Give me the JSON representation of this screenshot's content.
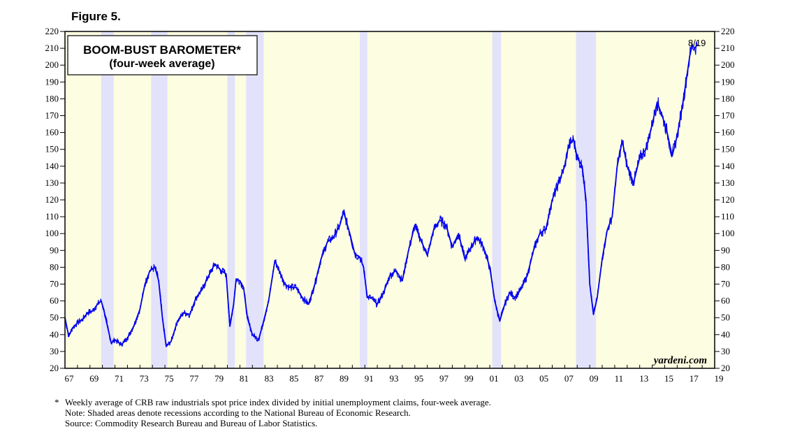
{
  "figure_label": "Figure 5.",
  "chart_data": {
    "type": "line",
    "title": "BOOM-BUST BAROMETER*",
    "subtitle": "(four-week average)",
    "xlabel": "",
    "ylabel": "",
    "xlim": [
      1967.0,
      2019.0
    ],
    "ylim": [
      20,
      220
    ],
    "y_ticks": [
      20,
      30,
      40,
      50,
      60,
      70,
      80,
      90,
      100,
      110,
      120,
      130,
      140,
      150,
      160,
      170,
      180,
      190,
      200,
      210,
      220
    ],
    "x_tick_labels": [
      "67",
      "69",
      "71",
      "73",
      "75",
      "77",
      "79",
      "81",
      "83",
      "85",
      "87",
      "89",
      "91",
      "93",
      "95",
      "97",
      "99",
      "01",
      "03",
      "05",
      "07",
      "09",
      "11",
      "13",
      "15",
      "17",
      "19"
    ],
    "x_tick_years": [
      1967,
      1969,
      1971,
      1973,
      1975,
      1977,
      1979,
      1981,
      1983,
      1985,
      1987,
      1989,
      1991,
      1993,
      1995,
      1997,
      1999,
      2001,
      2003,
      2005,
      2007,
      2009,
      2011,
      2013,
      2015,
      2017,
      2019
    ],
    "recessions": [
      {
        "start": 1969.9,
        "end": 1970.9
      },
      {
        "start": 1973.9,
        "end": 1975.2
      },
      {
        "start": 1980.0,
        "end": 1980.6
      },
      {
        "start": 1981.5,
        "end": 1982.9
      },
      {
        "start": 1990.6,
        "end": 1991.2
      },
      {
        "start": 2001.2,
        "end": 2001.9
      },
      {
        "start": 2007.9,
        "end": 2009.5
      }
    ],
    "series": [
      {
        "name": "Boom-Bust Barometer",
        "color": "#0000ee",
        "x": [
          1967.0,
          1967.3,
          1967.6,
          1968.0,
          1968.4,
          1968.8,
          1969.2,
          1969.6,
          1969.9,
          1970.1,
          1970.4,
          1970.7,
          1971.0,
          1971.5,
          1972.0,
          1972.5,
          1973.0,
          1973.4,
          1973.8,
          1974.0,
          1974.2,
          1974.5,
          1974.8,
          1975.1,
          1975.5,
          1976.0,
          1976.5,
          1977.0,
          1977.5,
          1978.0,
          1978.5,
          1979.0,
          1979.5,
          1979.9,
          1980.2,
          1980.5,
          1980.7,
          1981.0,
          1981.3,
          1981.6,
          1982.0,
          1982.5,
          1982.9,
          1983.3,
          1983.8,
          1984.2,
          1984.6,
          1985.0,
          1985.5,
          1986.0,
          1986.5,
          1987.0,
          1987.5,
          1988.0,
          1988.5,
          1989.0,
          1989.3,
          1989.8,
          1990.2,
          1990.6,
          1990.9,
          1991.2,
          1991.5,
          1992.0,
          1992.5,
          1993.0,
          1993.5,
          1994.0,
          1994.5,
          1995.0,
          1995.5,
          1996.0,
          1996.5,
          1997.0,
          1997.5,
          1998.0,
          1998.5,
          1999.0,
          1999.5,
          2000.0,
          2000.5,
          2001.0,
          2001.4,
          2001.8,
          2002.2,
          2002.6,
          2003.0,
          2003.5,
          2004.0,
          2004.5,
          2005.0,
          2005.5,
          2006.0,
          2006.5,
          2007.0,
          2007.3,
          2007.7,
          2008.0,
          2008.4,
          2008.7,
          2009.0,
          2009.3,
          2009.6,
          2010.0,
          2010.4,
          2010.8,
          2011.2,
          2011.6,
          2012.0,
          2012.5,
          2013.0,
          2013.5,
          2014.0,
          2014.4,
          2014.8,
          2015.2,
          2015.6,
          2016.0,
          2016.4,
          2016.8,
          2017.0,
          2017.2,
          2017.4,
          2017.6
        ],
        "values": [
          50,
          39,
          44,
          47,
          49,
          53,
          54,
          58,
          60,
          55,
          45,
          35,
          37,
          34,
          38,
          45,
          55,
          70,
          78,
          79,
          80,
          72,
          50,
          33,
          36,
          48,
          53,
          52,
          62,
          67,
          75,
          82,
          78,
          76,
          45,
          58,
          73,
          72,
          68,
          50,
          40,
          37,
          48,
          60,
          84,
          77,
          70,
          68,
          68,
          62,
          58,
          70,
          85,
          95,
          98,
          105,
          113,
          100,
          88,
          86,
          80,
          62,
          62,
          58,
          65,
          75,
          78,
          72,
          90,
          105,
          96,
          87,
          102,
          108,
          105,
          92,
          100,
          85,
          92,
          98,
          92,
          80,
          60,
          48,
          58,
          65,
          62,
          67,
          75,
          90,
          100,
          103,
          120,
          130,
          140,
          152,
          156,
          145,
          140,
          120,
          70,
          52,
          62,
          85,
          102,
          110,
          140,
          155,
          140,
          130,
          145,
          150,
          165,
          178,
          170,
          160,
          146,
          158,
          175,
          195,
          205,
          212,
          210,
          212
        ]
      }
    ],
    "end_label": "8/19",
    "watermark": "yardeni.com"
  },
  "notes": {
    "star": "*",
    "line1": "Weekly average of CRB raw industrials spot price index divided by initial unemployment claims, four-week average.",
    "line2": "Note: Shaded areas denote recessions according to the National Bureau of Economic Research.",
    "line3": "Source: Commodity Research Bureau and Bureau of Labor Statistics."
  },
  "colors": {
    "plot_background": "#fdfde1",
    "recession_shade": "#e2e2fa",
    "line": "#0000ee"
  }
}
